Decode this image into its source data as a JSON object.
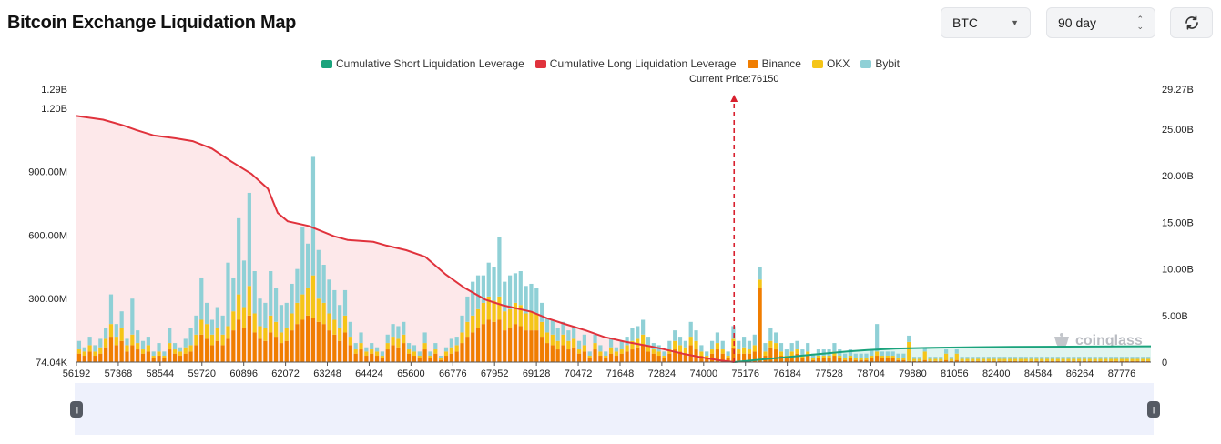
{
  "header": {
    "title": "Bitcoin Exchange Liquidation Map",
    "symbol_select": {
      "value": "BTC",
      "icon": "chevron-down-icon"
    },
    "period_select": {
      "value": "90 day",
      "icon": "up-down-icon"
    },
    "refresh_button": {
      "icon": "refresh-icon"
    }
  },
  "watermark": {
    "text": "coinglass",
    "icon": "coinglass-logo-icon"
  },
  "colors": {
    "short_line": "#1aa37c",
    "long_line": "#e0323c",
    "long_area": "#fde4e6",
    "binance": "#f07d00",
    "okx": "#f5c518",
    "bybit": "#8fd0d6",
    "current_price_line": "#d8202e"
  },
  "chart_data": {
    "type": "bar",
    "title": "",
    "legend": {
      "placement": "top-center",
      "entries": [
        "Cumulative Short Liquidation Leverage",
        "Cumulative Long Liquidation Leverage",
        "Binance",
        "OKX",
        "Bybit"
      ]
    },
    "current_price_label": "Current Price:76150",
    "current_price": 76150,
    "x_range": [
      56192,
      88800
    ],
    "x_ticks": [
      "56192",
      "57368",
      "58544",
      "59720",
      "60896",
      "62072",
      "63248",
      "64424",
      "65600",
      "66776",
      "67952",
      "69128",
      "70472",
      "71648",
      "72824",
      "74000",
      "75176",
      "76184",
      "77528",
      "78704",
      "79880",
      "81056",
      "82400",
      "84584",
      "86264",
      "87776"
    ],
    "y_left": {
      "range": [
        74040,
        1290000000
      ],
      "tick_labels": [
        "74.04K",
        "300.00M",
        "600.00M",
        "900.00M",
        "1.20B",
        "1.29B"
      ],
      "tick_values": [
        74040,
        300000000,
        600000000,
        900000000,
        1200000000,
        1290000000
      ]
    },
    "y_right": {
      "range": [
        0,
        29270000000
      ],
      "tick_labels": [
        "0",
        "5.00B",
        "10.00B",
        "15.00B",
        "20.00B",
        "25.00B",
        "29.27B"
      ],
      "tick_values": [
        0,
        5000000000,
        10000000000,
        15000000000,
        20000000000,
        25000000000,
        29270000000
      ]
    },
    "grid": false,
    "series": [
      {
        "name": "Cumulative Long Liquidation Leverage",
        "type": "area",
        "axis": "right",
        "points": [
          [
            56192,
            26.4
          ],
          [
            57000,
            26.0
          ],
          [
            57600,
            25.4
          ],
          [
            58000,
            24.9
          ],
          [
            58544,
            24.3
          ],
          [
            59200,
            24.0
          ],
          [
            59720,
            23.7
          ],
          [
            60300,
            22.9
          ],
          [
            60896,
            21.5
          ],
          [
            61500,
            20.2
          ],
          [
            62000,
            18.6
          ],
          [
            62300,
            16.0
          ],
          [
            62600,
            15.1
          ],
          [
            63248,
            14.6
          ],
          [
            64000,
            13.5
          ],
          [
            64424,
            13.1
          ],
          [
            65200,
            12.9
          ],
          [
            65600,
            12.5
          ],
          [
            66200,
            12.0
          ],
          [
            66776,
            11.3
          ],
          [
            67400,
            9.4
          ],
          [
            67952,
            8.0
          ],
          [
            68600,
            6.7
          ],
          [
            69128,
            6.1
          ],
          [
            70000,
            5.4
          ],
          [
            70472,
            4.7
          ],
          [
            71000,
            4.1
          ],
          [
            71648,
            3.4
          ],
          [
            72200,
            2.7
          ],
          [
            72824,
            2.2
          ],
          [
            73600,
            1.7
          ],
          [
            74000,
            1.4
          ],
          [
            74600,
            0.9
          ],
          [
            75176,
            0.5
          ],
          [
            75700,
            0.2
          ],
          [
            76150,
            0.0
          ]
        ]
      },
      {
        "name": "Cumulative Short Liquidation Leverage",
        "type": "area",
        "axis": "right",
        "points": [
          [
            76150,
            0.0
          ],
          [
            76600,
            0.15
          ],
          [
            77200,
            0.35
          ],
          [
            77800,
            0.55
          ],
          [
            78400,
            0.75
          ],
          [
            79000,
            0.95
          ],
          [
            79600,
            1.15
          ],
          [
            80200,
            1.3
          ],
          [
            81056,
            1.45
          ],
          [
            82400,
            1.55
          ],
          [
            83500,
            1.6
          ],
          [
            84584,
            1.63
          ],
          [
            86264,
            1.66
          ],
          [
            87776,
            1.68
          ],
          [
            88800,
            1.7
          ]
        ]
      },
      {
        "name": "Binance",
        "type": "bar",
        "axis": "left",
        "values_m": [
          40,
          30,
          50,
          30,
          40,
          70,
          120,
          80,
          100,
          50,
          80,
          60,
          40,
          50,
          20,
          30,
          20,
          60,
          40,
          30,
          40,
          50,
          80,
          130,
          110,
          80,
          100,
          80,
          110,
          150,
          200,
          160,
          220,
          140,
          110,
          100,
          140,
          120,
          90,
          100,
          150,
          180,
          200,
          220,
          210,
          190,
          180,
          150,
          130,
          100,
          140,
          80,
          40,
          60,
          30,
          40,
          30,
          20,
          60,
          80,
          70,
          90,
          40,
          30,
          20,
          60,
          20,
          40,
          10,
          30,
          40,
          50,
          90,
          120,
          140,
          160,
          180,
          200,
          190,
          200,
          150,
          160,
          180,
          170,
          150,
          150,
          150,
          120,
          90,
          80,
          60,
          80,
          60,
          70,
          40,
          50,
          20,
          60,
          30,
          20,
          40,
          30,
          40,
          50,
          60,
          70,
          80,
          50,
          40,
          30,
          20,
          40,
          60,
          50,
          40,
          80,
          60,
          30,
          20,
          40,
          60,
          40,
          20,
          70,
          40,
          40,
          40,
          50,
          350,
          30,
          70,
          60,
          30,
          20,
          30,
          40,
          20,
          30,
          10,
          20,
          20,
          20,
          30,
          20,
          10,
          20,
          10,
          10,
          10,
          20,
          30,
          20,
          20,
          20,
          10,
          10,
          5,
          5,
          5,
          10,
          5,
          5,
          5,
          10,
          5,
          10,
          5,
          5,
          5,
          5,
          5,
          5,
          5,
          5,
          5,
          5,
          5,
          5,
          5,
          5,
          5,
          5,
          5,
          5,
          5,
          5,
          5,
          5,
          5,
          5,
          5,
          5,
          5,
          5,
          5,
          5,
          5,
          5,
          5,
          5,
          5,
          5
        ]
      },
      {
        "name": "OKX",
        "type": "bar",
        "axis": "left",
        "values_m": [
          20,
          20,
          30,
          20,
          30,
          40,
          60,
          40,
          60,
          30,
          50,
          30,
          20,
          30,
          10,
          20,
          10,
          30,
          20,
          20,
          30,
          30,
          50,
          70,
          70,
          50,
          60,
          50,
          60,
          90,
          120,
          100,
          140,
          90,
          60,
          60,
          80,
          70,
          50,
          60,
          80,
          100,
          120,
          130,
          200,
          110,
          100,
          80,
          70,
          60,
          80,
          40,
          20,
          30,
          20,
          20,
          20,
          10,
          30,
          40,
          40,
          40,
          20,
          20,
          10,
          30,
          10,
          20,
          10,
          20,
          30,
          30,
          50,
          70,
          80,
          90,
          100,
          110,
          100,
          110,
          90,
          90,
          100,
          100,
          80,
          90,
          80,
          70,
          50,
          50,
          40,
          50,
          40,
          40,
          20,
          30,
          10,
          30,
          20,
          10,
          30,
          20,
          20,
          30,
          40,
          40,
          50,
          30,
          20,
          20,
          10,
          20,
          40,
          30,
          30,
          40,
          40,
          20,
          10,
          20,
          30,
          20,
          10,
          40,
          20,
          30,
          20,
          30,
          40,
          20,
          30,
          30,
          20,
          10,
          20,
          20,
          10,
          20,
          10,
          10,
          10,
          10,
          20,
          10,
          10,
          10,
          10,
          10,
          10,
          10,
          20,
          10,
          10,
          10,
          10,
          10,
          90,
          10,
          10,
          40,
          10,
          10,
          10,
          30,
          10,
          30,
          10,
          10,
          10,
          10,
          10,
          10,
          10,
          10,
          10,
          10,
          10,
          10,
          10,
          10,
          10,
          10,
          10,
          10,
          10,
          10,
          10,
          10,
          10,
          10,
          10,
          10,
          10,
          10,
          10,
          10,
          10,
          10,
          10,
          10,
          10,
          10
        ]
      },
      {
        "name": "Bybit",
        "type": "bar",
        "axis": "left",
        "values_m": [
          40,
          20,
          40,
          30,
          40,
          50,
          140,
          60,
          80,
          30,
          170,
          60,
          40,
          40,
          20,
          40,
          20,
          70,
          30,
          20,
          40,
          80,
          90,
          200,
          100,
          70,
          100,
          90,
          300,
          160,
          360,
          220,
          440,
          200,
          130,
          120,
          210,
          160,
          130,
          120,
          140,
          160,
          320,
          210,
          560,
          230,
          180,
          160,
          140,
          110,
          120,
          70,
          30,
          50,
          20,
          30,
          20,
          20,
          40,
          60,
          60,
          60,
          30,
          30,
          20,
          50,
          20,
          30,
          10,
          20,
          40,
          40,
          80,
          120,
          160,
          160,
          130,
          160,
          160,
          280,
          140,
          160,
          140,
          160,
          130,
          130,
          120,
          90,
          70,
          70,
          60,
          60,
          50,
          60,
          40,
          50,
          20,
          40,
          30,
          20,
          40,
          20,
          40,
          40,
          60,
          60,
          70,
          40,
          30,
          30,
          20,
          40,
          50,
          40,
          30,
          70,
          50,
          30,
          20,
          40,
          50,
          40,
          20,
          60,
          40,
          50,
          40,
          50,
          60,
          40,
          60,
          50,
          40,
          30,
          40,
          40,
          30,
          40,
          20,
          30,
          30,
          30,
          40,
          30,
          20,
          30,
          20,
          20,
          20,
          30,
          130,
          20,
          20,
          20,
          20,
          20,
          30,
          10,
          10,
          20,
          10,
          10,
          10,
          20,
          10,
          20,
          10,
          10,
          10,
          10,
          10,
          10,
          10,
          10,
          10,
          10,
          10,
          10,
          10,
          10,
          10,
          10,
          10,
          10,
          10,
          10,
          10,
          10,
          10,
          10,
          10,
          10,
          10,
          10,
          10,
          10,
          10,
          10,
          10,
          10,
          10,
          10
        ]
      }
    ]
  }
}
